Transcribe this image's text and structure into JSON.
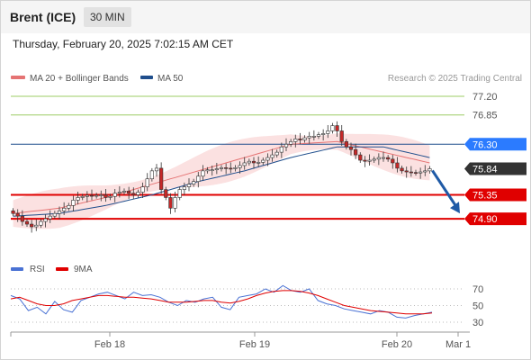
{
  "header": {
    "instrument": "Brent (ICE)",
    "timeframe": "30 MIN",
    "datetime": "Thursday, February 20, 2025 7:02:15 AM CET"
  },
  "legend": {
    "ma20": "MA 20 + Bollinger Bands",
    "ma50": "MA 50",
    "copyright": "Research © 2025 Trading Central",
    "rsi": "RSI",
    "ma9": "9MA"
  },
  "colors": {
    "up_candle": "#ffffff",
    "down_candle": "#c62828",
    "bollinger_fill": "#fbe1e1",
    "ma20": "#e57373",
    "ma50": "#1f4e8c",
    "resistance": "#9ccc65",
    "pivot": "#1f4e8c",
    "support": "#e00000",
    "current": "#333333",
    "arrow": "#1f5aa6",
    "rsi": "#4a72d4",
    "rsi_ma": "#e00000"
  },
  "chart_data": [
    {
      "type": "candlestick",
      "title": "Brent (ICE)",
      "timeframe": "30 MIN",
      "ylim": [
        74.7,
        77.45
      ],
      "x_ticks": [
        "Feb 18",
        "Feb 19",
        "Feb 20",
        "Mar 1"
      ],
      "series": [
        {
          "name": "Price",
          "close_path": [
            75.0,
            74.95,
            74.85,
            74.8,
            74.75,
            74.78,
            74.85,
            74.9,
            74.95,
            75.0,
            75.05,
            75.1,
            75.15,
            75.25,
            75.3,
            75.32,
            75.34,
            75.33,
            75.34,
            75.35,
            75.3,
            75.32,
            75.38,
            75.4,
            75.42,
            75.38,
            75.35,
            75.4,
            75.5,
            75.65,
            75.8,
            75.85,
            75.45,
            75.3,
            75.1,
            75.3,
            75.45,
            75.5,
            75.55,
            75.6,
            75.7,
            75.8,
            75.82,
            75.82,
            75.84,
            75.86,
            75.85,
            75.84,
            75.86,
            75.9,
            75.95,
            75.98,
            75.95,
            75.96,
            76.0,
            76.05,
            76.1,
            76.15,
            76.25,
            76.3,
            76.35,
            76.4,
            76.38,
            76.42,
            76.45,
            76.45,
            76.48,
            76.5,
            76.55,
            76.65,
            76.55,
            76.35,
            76.25,
            76.2,
            76.1,
            76.0,
            75.98,
            76.0,
            76.02,
            76.05,
            76.05,
            76.02,
            75.95,
            75.85,
            75.8,
            75.78,
            75.77,
            75.76,
            75.78,
            75.8,
            75.84
          ]
        },
        {
          "name": "MA 20",
          "values": [
            75.0,
            75.1,
            75.3,
            75.55,
            75.8,
            76.05,
            76.3,
            76.35,
            76.15,
            75.95
          ]
        },
        {
          "name": "MA 50",
          "values": [
            74.95,
            75.0,
            75.15,
            75.35,
            75.6,
            75.8,
            76.05,
            76.25,
            76.25,
            76.05
          ]
        }
      ],
      "levels": [
        {
          "label": "77.20",
          "value": 77.2,
          "kind": "resistance"
        },
        {
          "label": "76.85",
          "value": 76.85,
          "kind": "resistance"
        },
        {
          "label": "76.30",
          "value": 76.3,
          "kind": "pivot"
        },
        {
          "label": "75.84",
          "value": 75.84,
          "kind": "current"
        },
        {
          "label": "75.35",
          "value": 75.35,
          "kind": "support"
        },
        {
          "label": "74.90",
          "value": 74.9,
          "kind": "support"
        }
      ],
      "forecast_arrow": {
        "from": 75.84,
        "to": 74.9,
        "direction": "down"
      }
    },
    {
      "type": "line",
      "title": "RSI",
      "ylim": [
        20,
        80
      ],
      "y_ticks": [
        "70",
        "50",
        "30"
      ],
      "series": [
        {
          "name": "RSI",
          "values": [
            62,
            58,
            44,
            48,
            40,
            55,
            45,
            42,
            56,
            60,
            64,
            66,
            62,
            58,
            66,
            62,
            63,
            60,
            54,
            50,
            56,
            54,
            58,
            60,
            48,
            45,
            60,
            62,
            64,
            70,
            66,
            74,
            68,
            66,
            70,
            56,
            52,
            50,
            46,
            44,
            42,
            40,
            44,
            42,
            36,
            35,
            38,
            40,
            42
          ]
        },
        {
          "name": "9MA",
          "values": [
            58,
            60,
            56,
            52,
            50,
            50,
            52,
            56,
            58,
            60,
            62,
            62,
            61,
            60,
            60,
            59,
            58,
            56,
            54,
            54,
            54,
            55,
            56,
            56,
            54,
            53,
            55,
            58,
            62,
            65,
            67,
            68,
            68,
            67,
            65,
            62,
            58,
            54,
            50,
            48,
            46,
            44,
            43,
            42,
            41,
            40,
            40,
            40,
            41
          ]
        }
      ]
    }
  ]
}
